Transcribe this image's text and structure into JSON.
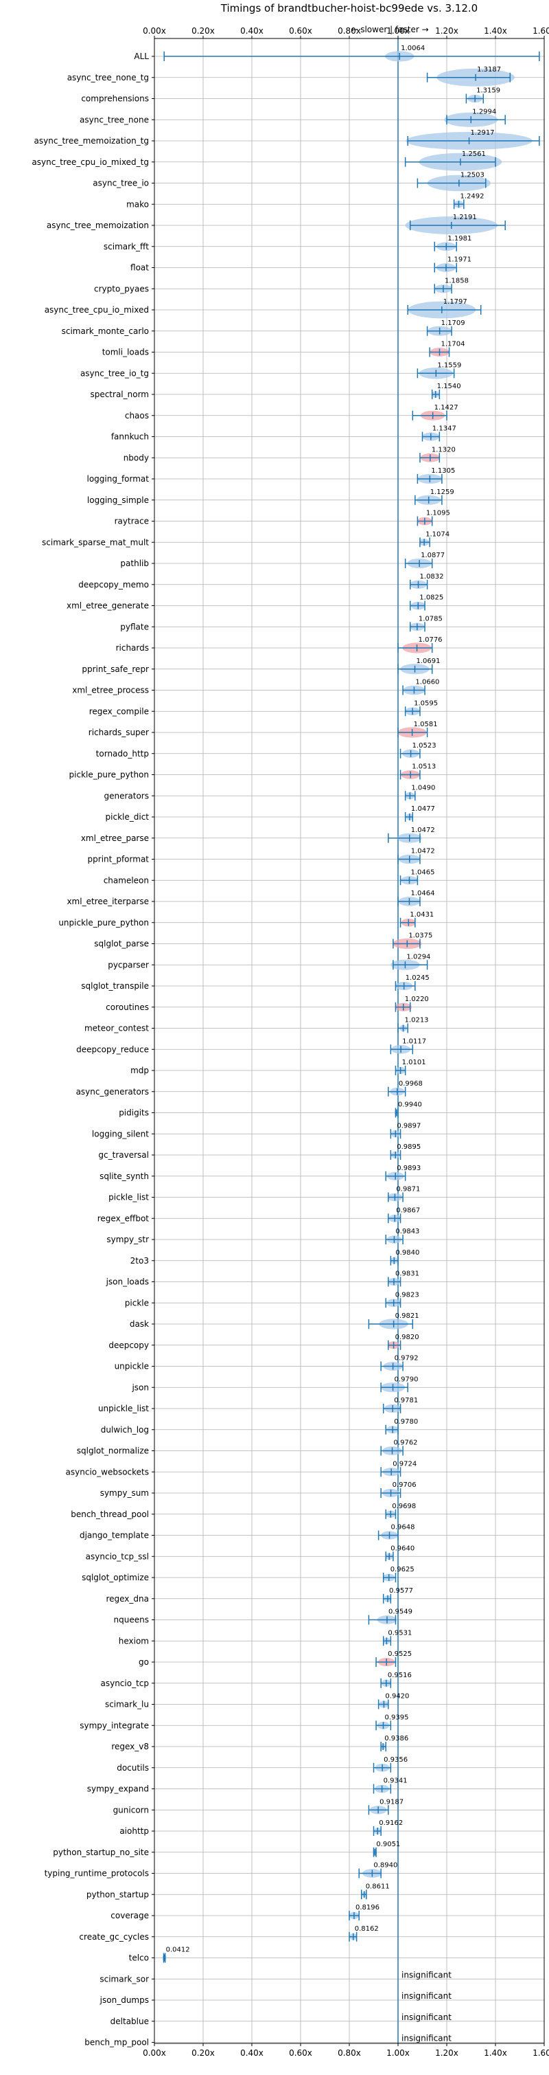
{
  "chart_data": {
    "type": "violin",
    "title": "Timings of brandtbucher-hoist-bc99ede vs. 3.12.0",
    "direction_label": "← slower | faster →",
    "xlim": [
      0.0,
      1.6
    ],
    "x_ticks": [
      "0.00x",
      "0.20x",
      "0.40x",
      "0.60x",
      "0.80x",
      "1.00x",
      "1.20x",
      "1.40x",
      "1.60x"
    ],
    "reference_x": 1.0,
    "grid": true,
    "colors": {
      "violin": "#a8c8e8",
      "violin_significant": "#f2a3a8",
      "line": "#1f77b4",
      "grid": "#b0b0b0",
      "reference": "#1f77b4"
    },
    "benchmarks": [
      {
        "name": "ALL",
        "value": 1.0064,
        "label": "1.0064",
        "min": 0.04,
        "max": 1.58,
        "spread": 0.06
      },
      {
        "name": "async_tree_none_tg",
        "value": 1.3187,
        "label": "1.3187",
        "min": 1.12,
        "max": 1.46,
        "spread": 0.16
      },
      {
        "name": "comprehensions",
        "value": 1.3159,
        "label": "1.3159",
        "min": 1.28,
        "max": 1.35,
        "spread": 0.03
      },
      {
        "name": "async_tree_none",
        "value": 1.2994,
        "label": "1.2994",
        "min": 1.2,
        "max": 1.44,
        "spread": 0.11
      },
      {
        "name": "async_tree_memoization_tg",
        "value": 1.2917,
        "label": "1.2917",
        "min": 1.04,
        "max": 1.58,
        "spread": 0.26
      },
      {
        "name": "async_tree_cpu_io_mixed_tg",
        "value": 1.2561,
        "label": "1.2561",
        "min": 1.03,
        "max": 1.4,
        "spread": 0.17
      },
      {
        "name": "async_tree_io",
        "value": 1.2503,
        "label": "1.2503",
        "min": 1.08,
        "max": 1.36,
        "spread": 0.13
      },
      {
        "name": "mako",
        "value": 1.2492,
        "label": "1.2492",
        "min": 1.23,
        "max": 1.27,
        "spread": 0.02
      },
      {
        "name": "async_tree_memoization",
        "value": 1.2191,
        "label": "1.2191",
        "min": 1.05,
        "max": 1.44,
        "spread": 0.19
      },
      {
        "name": "scimark_fft",
        "value": 1.1981,
        "label": "1.1981",
        "min": 1.15,
        "max": 1.24,
        "spread": 0.04
      },
      {
        "name": "float",
        "value": 1.1971,
        "label": "1.1971",
        "min": 1.15,
        "max": 1.24,
        "spread": 0.04
      },
      {
        "name": "crypto_pyaes",
        "value": 1.1858,
        "label": "1.1858",
        "min": 1.15,
        "max": 1.22,
        "spread": 0.035
      },
      {
        "name": "async_tree_cpu_io_mixed",
        "value": 1.1797,
        "label": "1.1797",
        "min": 1.04,
        "max": 1.34,
        "spread": 0.14
      },
      {
        "name": "scimark_monte_carlo",
        "value": 1.1709,
        "label": "1.1709",
        "min": 1.12,
        "max": 1.22,
        "spread": 0.05
      },
      {
        "name": "tomli_loads",
        "value": 1.1704,
        "label": "1.1704",
        "min": 1.13,
        "max": 1.21,
        "spread": 0.04,
        "significant": true
      },
      {
        "name": "async_tree_io_tg",
        "value": 1.1559,
        "label": "1.1559",
        "min": 1.08,
        "max": 1.23,
        "spread": 0.07
      },
      {
        "name": "spectral_norm",
        "value": 1.154,
        "label": "1.1540",
        "min": 1.14,
        "max": 1.17,
        "spread": 0.015
      },
      {
        "name": "chaos",
        "value": 1.1427,
        "label": "1.1427",
        "min": 1.06,
        "max": 1.2,
        "spread": 0.05,
        "significant": true
      },
      {
        "name": "fannkuch",
        "value": 1.1347,
        "label": "1.1347",
        "min": 1.1,
        "max": 1.17,
        "spread": 0.035
      },
      {
        "name": "nbody",
        "value": 1.132,
        "label": "1.1320",
        "min": 1.09,
        "max": 1.17,
        "spread": 0.04,
        "significant": true
      },
      {
        "name": "logging_format",
        "value": 1.1305,
        "label": "1.1305",
        "min": 1.08,
        "max": 1.18,
        "spread": 0.05
      },
      {
        "name": "logging_simple",
        "value": 1.1259,
        "label": "1.1259",
        "min": 1.07,
        "max": 1.18,
        "spread": 0.05
      },
      {
        "name": "raytrace",
        "value": 1.1095,
        "label": "1.1095",
        "min": 1.08,
        "max": 1.14,
        "spread": 0.03,
        "significant": true
      },
      {
        "name": "scimark_sparse_mat_mult",
        "value": 1.1074,
        "label": "1.1074",
        "min": 1.09,
        "max": 1.13,
        "spread": 0.02
      },
      {
        "name": "pathlib",
        "value": 1.0877,
        "label": "1.0877",
        "min": 1.03,
        "max": 1.14,
        "spread": 0.05
      },
      {
        "name": "deepcopy_memo",
        "value": 1.0832,
        "label": "1.0832",
        "min": 1.05,
        "max": 1.12,
        "spread": 0.035
      },
      {
        "name": "xml_etree_generate",
        "value": 1.0825,
        "label": "1.0825",
        "min": 1.05,
        "max": 1.11,
        "spread": 0.03
      },
      {
        "name": "pyflate",
        "value": 1.0785,
        "label": "1.0785",
        "min": 1.05,
        "max": 1.11,
        "spread": 0.03
      },
      {
        "name": "richards",
        "value": 1.0776,
        "label": "1.0776",
        "min": 1.0,
        "max": 1.14,
        "spread": 0.06,
        "significant": true
      },
      {
        "name": "pprint_safe_repr",
        "value": 1.0691,
        "label": "1.0691",
        "min": 1.0,
        "max": 1.14,
        "spread": 0.06
      },
      {
        "name": "xml_etree_process",
        "value": 1.066,
        "label": "1.0660",
        "min": 1.02,
        "max": 1.11,
        "spread": 0.045
      },
      {
        "name": "regex_compile",
        "value": 1.0595,
        "label": "1.0595",
        "min": 1.03,
        "max": 1.09,
        "spread": 0.03
      },
      {
        "name": "richards_super",
        "value": 1.0581,
        "label": "1.0581",
        "min": 1.0,
        "max": 1.12,
        "spread": 0.06,
        "significant": true
      },
      {
        "name": "tornado_http",
        "value": 1.0523,
        "label": "1.0523",
        "min": 1.01,
        "max": 1.09,
        "spread": 0.035
      },
      {
        "name": "pickle_pure_python",
        "value": 1.0513,
        "label": "1.0513",
        "min": 1.01,
        "max": 1.09,
        "spread": 0.04,
        "significant": true
      },
      {
        "name": "generators",
        "value": 1.049,
        "label": "1.0490",
        "min": 1.03,
        "max": 1.07,
        "spread": 0.02
      },
      {
        "name": "pickle_dict",
        "value": 1.0477,
        "label": "1.0477",
        "min": 1.03,
        "max": 1.06,
        "spread": 0.015
      },
      {
        "name": "xml_etree_parse",
        "value": 1.0472,
        "label": "1.0472",
        "min": 0.96,
        "max": 1.09,
        "spread": 0.05
      },
      {
        "name": "pprint_pformat",
        "value": 1.0472,
        "label": "1.0472",
        "min": 1.0,
        "max": 1.09,
        "spread": 0.045
      },
      {
        "name": "chameleon",
        "value": 1.0465,
        "label": "1.0465",
        "min": 1.01,
        "max": 1.08,
        "spread": 0.035
      },
      {
        "name": "xml_etree_iterparse",
        "value": 1.0464,
        "label": "1.0464",
        "min": 1.0,
        "max": 1.09,
        "spread": 0.045
      },
      {
        "name": "unpickle_pure_python",
        "value": 1.0431,
        "label": "1.0431",
        "min": 1.01,
        "max": 1.07,
        "spread": 0.03,
        "significant": true
      },
      {
        "name": "sqlglot_parse",
        "value": 1.0375,
        "label": "1.0375",
        "min": 0.98,
        "max": 1.09,
        "spread": 0.06,
        "significant": true
      },
      {
        "name": "pycparser",
        "value": 1.0294,
        "label": "1.0294",
        "min": 0.98,
        "max": 1.12,
        "spread": 0.06
      },
      {
        "name": "sqlglot_transpile",
        "value": 1.0245,
        "label": "1.0245",
        "min": 0.99,
        "max": 1.07,
        "spread": 0.035
      },
      {
        "name": "coroutines",
        "value": 1.022,
        "label": "1.0220",
        "min": 0.99,
        "max": 1.05,
        "spread": 0.035,
        "significant": true
      },
      {
        "name": "meteor_contest",
        "value": 1.0213,
        "label": "1.0213",
        "min": 1.0,
        "max": 1.04,
        "spread": 0.015
      },
      {
        "name": "deepcopy_reduce",
        "value": 1.0117,
        "label": "1.0117",
        "min": 0.97,
        "max": 1.06,
        "spread": 0.04
      },
      {
        "name": "mdp",
        "value": 1.0101,
        "label": "1.0101",
        "min": 0.99,
        "max": 1.03,
        "spread": 0.02
      },
      {
        "name": "async_generators",
        "value": 0.9968,
        "label": "0.9968",
        "min": 0.96,
        "max": 1.03,
        "spread": 0.03
      },
      {
        "name": "pidigits",
        "value": 0.994,
        "label": "0.9940",
        "min": 0.99,
        "max": 1.0,
        "spread": 0.008
      },
      {
        "name": "logging_silent",
        "value": 0.9897,
        "label": "0.9897",
        "min": 0.97,
        "max": 1.01,
        "spread": 0.018
      },
      {
        "name": "gc_traversal",
        "value": 0.9895,
        "label": "0.9895",
        "min": 0.97,
        "max": 1.01,
        "spread": 0.018
      },
      {
        "name": "sqlite_synth",
        "value": 0.9893,
        "label": "0.9893",
        "min": 0.95,
        "max": 1.03,
        "spread": 0.035
      },
      {
        "name": "pickle_list",
        "value": 0.9871,
        "label": "0.9871",
        "min": 0.96,
        "max": 1.02,
        "spread": 0.03
      },
      {
        "name": "regex_effbot",
        "value": 0.9867,
        "label": "0.9867",
        "min": 0.96,
        "max": 1.01,
        "spread": 0.025
      },
      {
        "name": "sympy_str",
        "value": 0.9843,
        "label": "0.9843",
        "min": 0.95,
        "max": 1.02,
        "spread": 0.03
      },
      {
        "name": "2to3",
        "value": 0.984,
        "label": "0.9840",
        "min": 0.97,
        "max": 1.0,
        "spread": 0.015
      },
      {
        "name": "json_loads",
        "value": 0.9831,
        "label": "0.9831",
        "min": 0.96,
        "max": 1.01,
        "spread": 0.025
      },
      {
        "name": "pickle",
        "value": 0.9823,
        "label": "0.9823",
        "min": 0.95,
        "max": 1.01,
        "spread": 0.03
      },
      {
        "name": "dask",
        "value": 0.9821,
        "label": "0.9821",
        "min": 0.88,
        "max": 1.06,
        "spread": 0.06
      },
      {
        "name": "deepcopy",
        "value": 0.982,
        "label": "0.9820",
        "min": 0.96,
        "max": 1.01,
        "spread": 0.025,
        "significant": true
      },
      {
        "name": "unpickle",
        "value": 0.9792,
        "label": "0.9792",
        "min": 0.93,
        "max": 1.02,
        "spread": 0.04
      },
      {
        "name": "json",
        "value": 0.979,
        "label": "0.9790",
        "min": 0.93,
        "max": 1.04,
        "spread": 0.05
      },
      {
        "name": "unpickle_list",
        "value": 0.9781,
        "label": "0.9781",
        "min": 0.94,
        "max": 1.01,
        "spread": 0.035
      },
      {
        "name": "dulwich_log",
        "value": 0.978,
        "label": "0.9780",
        "min": 0.95,
        "max": 1.0,
        "spread": 0.025
      },
      {
        "name": "sqlglot_normalize",
        "value": 0.9762,
        "label": "0.9762",
        "min": 0.93,
        "max": 1.02,
        "spread": 0.04
      },
      {
        "name": "asyncio_websockets",
        "value": 0.9724,
        "label": "0.9724",
        "min": 0.93,
        "max": 1.01,
        "spread": 0.035
      },
      {
        "name": "sympy_sum",
        "value": 0.9706,
        "label": "0.9706",
        "min": 0.93,
        "max": 1.01,
        "spread": 0.035
      },
      {
        "name": "bench_thread_pool",
        "value": 0.9698,
        "label": "0.9698",
        "min": 0.95,
        "max": 0.99,
        "spread": 0.02
      },
      {
        "name": "django_template",
        "value": 0.9648,
        "label": "0.9648",
        "min": 0.92,
        "max": 1.0,
        "spread": 0.035
      },
      {
        "name": "asyncio_tcp_ssl",
        "value": 0.964,
        "label": "0.9640",
        "min": 0.95,
        "max": 0.98,
        "spread": 0.015
      },
      {
        "name": "sqlglot_optimize",
        "value": 0.9625,
        "label": "0.9625",
        "min": 0.94,
        "max": 0.99,
        "spread": 0.025
      },
      {
        "name": "regex_dna",
        "value": 0.9577,
        "label": "0.9577",
        "min": 0.94,
        "max": 0.97,
        "spread": 0.015
      },
      {
        "name": "nqueens",
        "value": 0.9549,
        "label": "0.9549",
        "min": 0.88,
        "max": 0.99,
        "spread": 0.04
      },
      {
        "name": "hexiom",
        "value": 0.9531,
        "label": "0.9531",
        "min": 0.94,
        "max": 0.97,
        "spread": 0.015
      },
      {
        "name": "go",
        "value": 0.9525,
        "label": "0.9525",
        "min": 0.91,
        "max": 0.99,
        "spread": 0.035,
        "significant": true
      },
      {
        "name": "asyncio_tcp",
        "value": 0.9516,
        "label": "0.9516",
        "min": 0.93,
        "max": 0.97,
        "spread": 0.02
      },
      {
        "name": "scimark_lu",
        "value": 0.942,
        "label": "0.9420",
        "min": 0.92,
        "max": 0.96,
        "spread": 0.02
      },
      {
        "name": "sympy_integrate",
        "value": 0.9395,
        "label": "0.9395",
        "min": 0.91,
        "max": 0.97,
        "spread": 0.025
      },
      {
        "name": "regex_v8",
        "value": 0.9386,
        "label": "0.9386",
        "min": 0.93,
        "max": 0.95,
        "spread": 0.01
      },
      {
        "name": "docutils",
        "value": 0.9356,
        "label": "0.9356",
        "min": 0.9,
        "max": 0.97,
        "spread": 0.03
      },
      {
        "name": "sympy_expand",
        "value": 0.9341,
        "label": "0.9341",
        "min": 0.9,
        "max": 0.97,
        "spread": 0.03
      },
      {
        "name": "gunicorn",
        "value": 0.9187,
        "label": "0.9187",
        "min": 0.88,
        "max": 0.96,
        "spread": 0.035
      },
      {
        "name": "aiohttp",
        "value": 0.9162,
        "label": "0.9162",
        "min": 0.9,
        "max": 0.93,
        "spread": 0.015
      },
      {
        "name": "python_startup_no_site",
        "value": 0.9051,
        "label": "0.9051",
        "min": 0.9,
        "max": 0.91,
        "spread": 0.006
      },
      {
        "name": "typing_runtime_protocols",
        "value": 0.894,
        "label": "0.8940",
        "min": 0.84,
        "max": 0.93,
        "spread": 0.04
      },
      {
        "name": "python_startup",
        "value": 0.8611,
        "label": "0.8611",
        "min": 0.85,
        "max": 0.87,
        "spread": 0.006
      },
      {
        "name": "coverage",
        "value": 0.8196,
        "label": "0.8196",
        "min": 0.8,
        "max": 0.84,
        "spread": 0.02
      },
      {
        "name": "create_gc_cycles",
        "value": 0.8162,
        "label": "0.8162",
        "min": 0.8,
        "max": 0.83,
        "spread": 0.015
      },
      {
        "name": "telco",
        "value": 0.0412,
        "label": "0.0412",
        "min": 0.038,
        "max": 0.044,
        "spread": 0.004
      },
      {
        "name": "scimark_sor",
        "insignificant": true
      },
      {
        "name": "json_dumps",
        "insignificant": true
      },
      {
        "name": "deltablue",
        "insignificant": true
      },
      {
        "name": "bench_mp_pool",
        "insignificant": true
      }
    ],
    "insignificant_label": "insignificant"
  }
}
